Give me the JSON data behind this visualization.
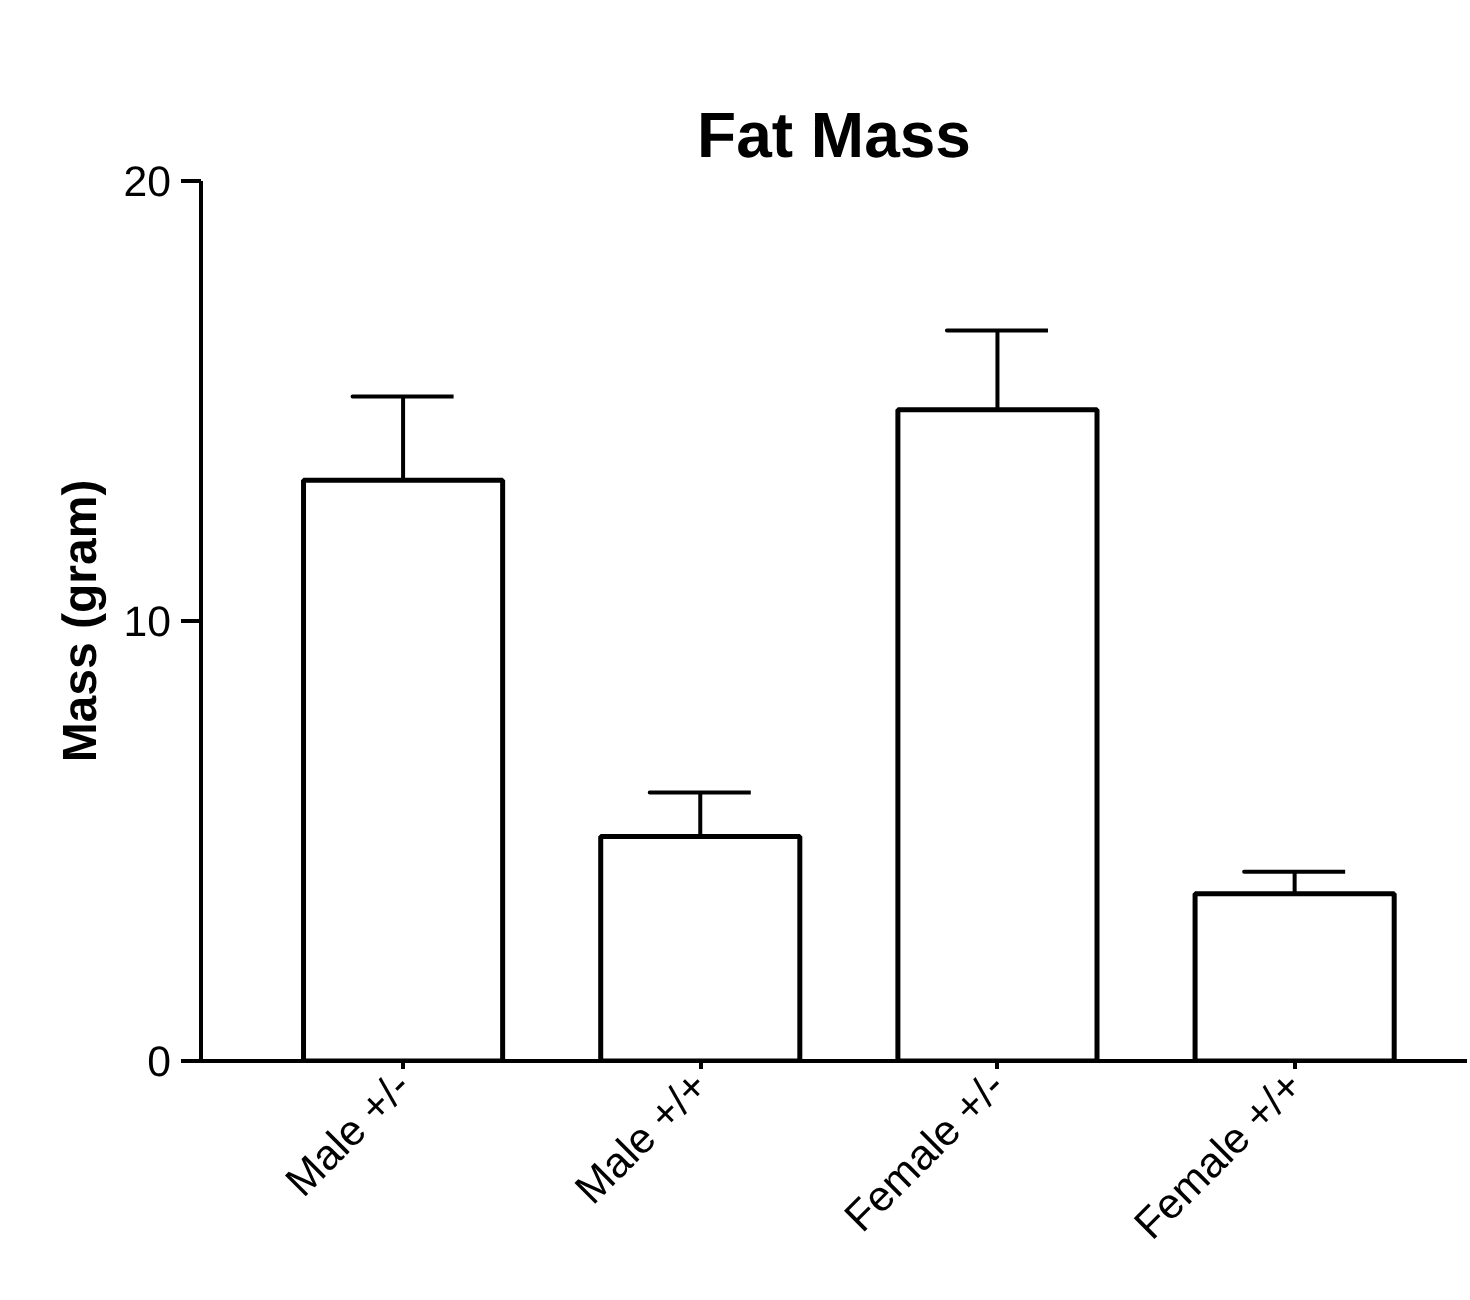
{
  "chart_data": {
    "type": "bar",
    "title": "Fat Mass",
    "ylabel": "Mass (gram)",
    "categories": [
      "Male +/-",
      "Male +/+",
      "Female +/-",
      "Female +/+"
    ],
    "values": [
      13.2,
      5.1,
      14.8,
      3.8
    ],
    "errors": [
      [
        13.2,
        15.1
      ],
      [
        5.1,
        6.1
      ],
      [
        14.8,
        16.6
      ],
      [
        3.8,
        4.3
      ]
    ],
    "color": "#ffffff",
    "ylim": [
      0,
      20
    ],
    "yticks": [
      0,
      10,
      20
    ],
    "grid": false
  }
}
